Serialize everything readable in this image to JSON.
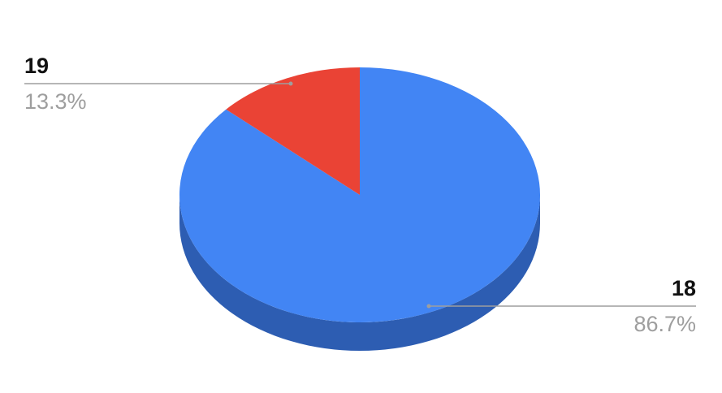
{
  "chart_data": {
    "type": "pie",
    "style": "3d",
    "categories": [
      "18",
      "19"
    ],
    "values": [
      86.7,
      13.3
    ],
    "labels": [
      "86.7%",
      "13.3%"
    ],
    "colors": [
      "#4285F4",
      "#EA4335"
    ],
    "side_colors": [
      "#2D5DB2",
      "#B0332A"
    ],
    "title": "",
    "legend": "none"
  }
}
